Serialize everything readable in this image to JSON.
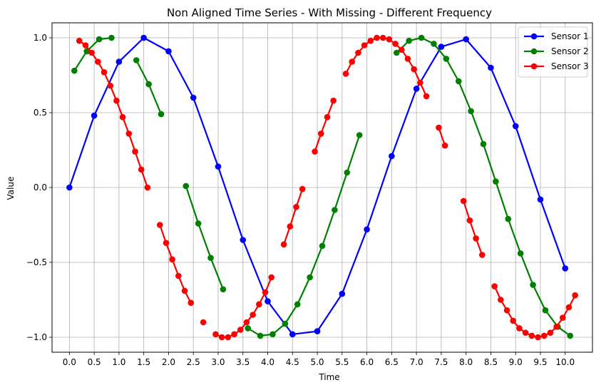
{
  "chart_data": {
    "type": "line",
    "title": "Non Aligned Time Series - With Missing - Different Frequency",
    "xlabel": "Time",
    "ylabel": "Value",
    "xlim": [
      -0.35,
      10.55
    ],
    "ylim": [
      -1.1,
      1.1
    ],
    "xticks": [
      0.0,
      0.5,
      1.0,
      1.5,
      2.0,
      2.5,
      3.0,
      3.5,
      4.0,
      4.5,
      5.0,
      5.5,
      6.0,
      6.5,
      7.0,
      7.5,
      8.0,
      8.5,
      9.0,
      9.5,
      10.0
    ],
    "xtick_labels": [
      "0.0",
      "0.5",
      "1.0",
      "1.5",
      "2.0",
      "2.5",
      "3.0",
      "3.5",
      "4.0",
      "4.5",
      "5.0",
      "5.5",
      "6.0",
      "6.5",
      "7.0",
      "7.5",
      "8.0",
      "8.5",
      "9.0",
      "9.5",
      "10.0"
    ],
    "yticks": [
      -1.0,
      -0.5,
      0.0,
      0.5,
      1.0
    ],
    "ytick_labels": [
      "−1.0",
      "−0.5",
      "0.0",
      "0.5",
      "1.0"
    ],
    "grid": true,
    "legend_position": "top-right",
    "series": [
      {
        "name": "Sensor 1",
        "color": "#0000ff",
        "segments": [
          [
            [
              0.0,
              0.0
            ],
            [
              0.5,
              0.48
            ],
            [
              1.0,
              0.84
            ],
            [
              1.5,
              1.0
            ],
            [
              2.0,
              0.91
            ],
            [
              2.5,
              0.6
            ],
            [
              3.0,
              0.14
            ],
            [
              3.5,
              -0.35
            ],
            [
              4.0,
              -0.76
            ],
            [
              4.5,
              -0.98
            ],
            [
              5.0,
              -0.96
            ],
            [
              5.5,
              -0.71
            ],
            [
              6.0,
              -0.28
            ],
            [
              6.5,
              0.21
            ],
            [
              7.0,
              0.66
            ],
            [
              7.5,
              0.94
            ],
            [
              8.0,
              0.99
            ],
            [
              8.5,
              0.8
            ],
            [
              9.0,
              0.41
            ],
            [
              9.5,
              -0.08
            ],
            [
              10.0,
              -0.54
            ]
          ]
        ]
      },
      {
        "name": "Sensor 2",
        "color": "#008000",
        "segments": [
          [
            [
              0.1,
              0.78
            ],
            [
              0.35,
              0.91
            ],
            [
              0.6,
              0.99
            ],
            [
              0.85,
              1.0
            ]
          ],
          [
            [
              1.35,
              0.85
            ],
            [
              1.6,
              0.69
            ],
            [
              1.85,
              0.49
            ]
          ],
          [
            [
              2.35,
              0.01
            ],
            [
              2.6,
              -0.24
            ],
            [
              2.85,
              -0.47
            ],
            [
              3.1,
              -0.68
            ]
          ],
          [
            [
              3.6,
              -0.94
            ],
            [
              3.85,
              -0.99
            ],
            [
              4.1,
              -0.98
            ],
            [
              4.35,
              -0.91
            ],
            [
              4.6,
              -0.78
            ],
            [
              4.85,
              -0.6
            ],
            [
              5.1,
              -0.39
            ],
            [
              5.35,
              -0.15
            ],
            [
              5.6,
              0.1
            ],
            [
              5.85,
              0.35
            ]
          ],
          [
            [
              6.6,
              0.9
            ],
            [
              6.85,
              0.98
            ],
            [
              7.1,
              1.0
            ],
            [
              7.35,
              0.96
            ],
            [
              7.6,
              0.86
            ],
            [
              7.85,
              0.71
            ],
            [
              8.1,
              0.51
            ],
            [
              8.35,
              0.29
            ],
            [
              8.6,
              0.04
            ],
            [
              8.85,
              -0.21
            ],
            [
              9.1,
              -0.44
            ],
            [
              9.35,
              -0.65
            ],
            [
              9.6,
              -0.82
            ],
            [
              9.85,
              -0.93
            ],
            [
              10.1,
              -0.99
            ]
          ]
        ]
      },
      {
        "name": "Sensor 3",
        "color": "#ff0000",
        "segments": [
          [
            [
              0.2,
              0.98
            ],
            [
              0.325,
              0.95
            ],
            [
              0.45,
              0.9
            ],
            [
              0.575,
              0.84
            ],
            [
              0.7,
              0.77
            ],
            [
              0.825,
              0.68
            ],
            [
              0.95,
              0.58
            ],
            [
              1.075,
              0.47
            ],
            [
              1.2,
              0.36
            ],
            [
              1.325,
              0.24
            ],
            [
              1.45,
              0.12
            ],
            [
              1.575,
              0.0
            ]
          ],
          [
            [
              1.825,
              -0.25
            ],
            [
              1.95,
              -0.37
            ],
            [
              2.075,
              -0.48
            ],
            [
              2.2,
              -0.59
            ],
            [
              2.325,
              -0.69
            ],
            [
              2.45,
              -0.77
            ]
          ],
          [
            [
              2.7,
              -0.9
            ]
          ],
          [
            [
              2.95,
              -0.98
            ],
            [
              3.075,
              -1.0
            ],
            [
              3.2,
              -1.0
            ],
            [
              3.325,
              -0.98
            ],
            [
              3.45,
              -0.95
            ],
            [
              3.575,
              -0.9
            ],
            [
              3.7,
              -0.85
            ],
            [
              3.825,
              -0.78
            ],
            [
              3.95,
              -0.7
            ],
            [
              4.075,
              -0.6
            ]
          ],
          [
            [
              4.325,
              -0.38
            ],
            [
              4.45,
              -0.26
            ],
            [
              4.575,
              -0.13
            ],
            [
              4.7,
              -0.01
            ]
          ],
          [
            [
              4.95,
              0.24
            ],
            [
              5.075,
              0.36
            ],
            [
              5.2,
              0.47
            ],
            [
              5.325,
              0.58
            ]
          ],
          [
            [
              5.575,
              0.76
            ],
            [
              5.7,
              0.84
            ],
            [
              5.825,
              0.9
            ],
            [
              5.95,
              0.95
            ],
            [
              6.075,
              0.98
            ],
            [
              6.2,
              1.0
            ],
            [
              6.325,
              1.0
            ],
            [
              6.45,
              0.99
            ],
            [
              6.575,
              0.96
            ],
            [
              6.7,
              0.92
            ],
            [
              6.825,
              0.86
            ],
            [
              6.95,
              0.79
            ],
            [
              7.075,
              0.7
            ],
            [
              7.2,
              0.61
            ]
          ],
          [
            [
              7.45,
              0.4
            ],
            [
              7.575,
              0.28
            ]
          ],
          [
            [
              7.95,
              -0.09
            ],
            [
              8.075,
              -0.22
            ],
            [
              8.2,
              -0.34
            ],
            [
              8.325,
              -0.45
            ]
          ],
          [
            [
              8.575,
              -0.66
            ],
            [
              8.7,
              -0.75
            ],
            [
              8.825,
              -0.82
            ],
            [
              8.95,
              -0.89
            ],
            [
              9.075,
              -0.94
            ],
            [
              9.2,
              -0.97
            ],
            [
              9.325,
              -0.99
            ],
            [
              9.45,
              -1.0
            ],
            [
              9.575,
              -0.99
            ],
            [
              9.7,
              -0.97
            ],
            [
              9.825,
              -0.93
            ],
            [
              9.95,
              -0.87
            ],
            [
              10.075,
              -0.8
            ],
            [
              10.2,
              -0.72
            ]
          ]
        ]
      }
    ]
  }
}
